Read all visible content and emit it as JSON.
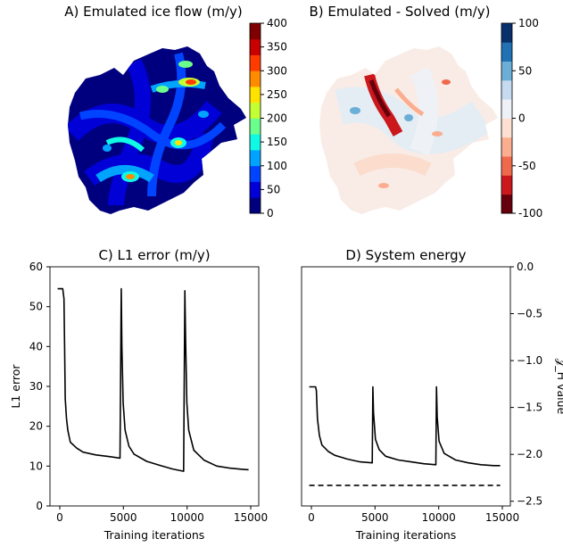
{
  "panels": {
    "a": {
      "title": "A) Emulated ice flow (m/y)",
      "colorbar": {
        "ticks": [
          "400",
          "350",
          "300",
          "250",
          "200",
          "150",
          "100",
          "50",
          "0"
        ],
        "colors": [
          "#00007f",
          "#0000d7",
          "#0044ff",
          "#00a4ff",
          "#10f9e5",
          "#6bff8b",
          "#c4ff33",
          "#ffe200",
          "#ff8c00",
          "#ff3b00",
          "#c80000",
          "#7f0000"
        ]
      }
    },
    "b": {
      "title": "B) Emulated - Solved (m/y)",
      "colorbar": {
        "ticks": [
          "100",
          "50",
          "0",
          "-50",
          "-100"
        ],
        "colors": [
          "#08306b",
          "#2171b5",
          "#6baed6",
          "#c6dbef",
          "#eef2f7",
          "#fde0d2",
          "#fbae8f",
          "#ef6a4c",
          "#cb181d",
          "#67000d"
        ]
      }
    }
  },
  "chart_data": [
    {
      "type": "line",
      "title": "C) L1 error (m/y)",
      "xlabel": "Training iterations",
      "ylabel": "L1 error",
      "xlim": [
        -600,
        15800
      ],
      "ylim": [
        0,
        60
      ],
      "xticks": [
        "0",
        "5000",
        "10000",
        "15000"
      ],
      "yticks": [
        "0",
        "10",
        "20",
        "30",
        "40",
        "50",
        "60"
      ],
      "series": [
        {
          "color": "#000000",
          "x": [
            0,
            400,
            500,
            550,
            600,
            700,
            800,
            1000,
            1500,
            2000,
            3000,
            4000,
            4900,
            5000,
            5050,
            5150,
            5300,
            5600,
            6000,
            7000,
            8000,
            9000,
            9900,
            10000,
            10050,
            10150,
            10300,
            10700,
            11500,
            12500,
            13500,
            14500,
            15000
          ],
          "y": [
            54.5,
            54.5,
            52,
            40,
            27,
            22,
            19,
            16,
            14.5,
            13.5,
            12.8,
            12.4,
            12,
            54.5,
            40,
            26,
            19,
            15,
            13,
            11.2,
            10.2,
            9.3,
            8.7,
            54,
            42,
            26,
            19,
            14,
            11.5,
            10,
            9.5,
            9.2,
            9.1
          ]
        }
      ]
    },
    {
      "type": "line",
      "title": "D) System energy",
      "xlabel": "Training iterations",
      "ylabel": "𝒥_H value",
      "xlim": [
        -600,
        15800
      ],
      "ylim": [
        -2.55,
        0
      ],
      "xticks": [
        "0",
        "5000",
        "10000",
        "15000"
      ],
      "yticks": [
        "0.0",
        "−0.5",
        "−1.0",
        "−1.5",
        "−2.0",
        "−2.5"
      ],
      "series": [
        {
          "color": "#000000",
          "x": [
            0,
            500,
            560,
            650,
            800,
            1000,
            1500,
            2000,
            3000,
            4000,
            4950,
            5000,
            5050,
            5200,
            5500,
            6000,
            7000,
            8000,
            9000,
            9950,
            10000,
            10050,
            10200,
            10600,
            11500,
            12500,
            13500,
            14500,
            15000
          ],
          "y": [
            -1.28,
            -1.28,
            -1.32,
            -1.62,
            -1.8,
            -1.9,
            -1.97,
            -2.01,
            -2.05,
            -2.08,
            -2.09,
            -1.28,
            -1.55,
            -1.84,
            -1.95,
            -2.02,
            -2.06,
            -2.08,
            -2.1,
            -2.11,
            -1.28,
            -1.6,
            -1.86,
            -1.99,
            -2.06,
            -2.09,
            -2.11,
            -2.12,
            -2.12
          ]
        },
        {
          "color": "#000000",
          "dashed": true,
          "x": [
            0,
            15000
          ],
          "y": [
            -2.33,
            -2.33
          ]
        }
      ]
    }
  ]
}
